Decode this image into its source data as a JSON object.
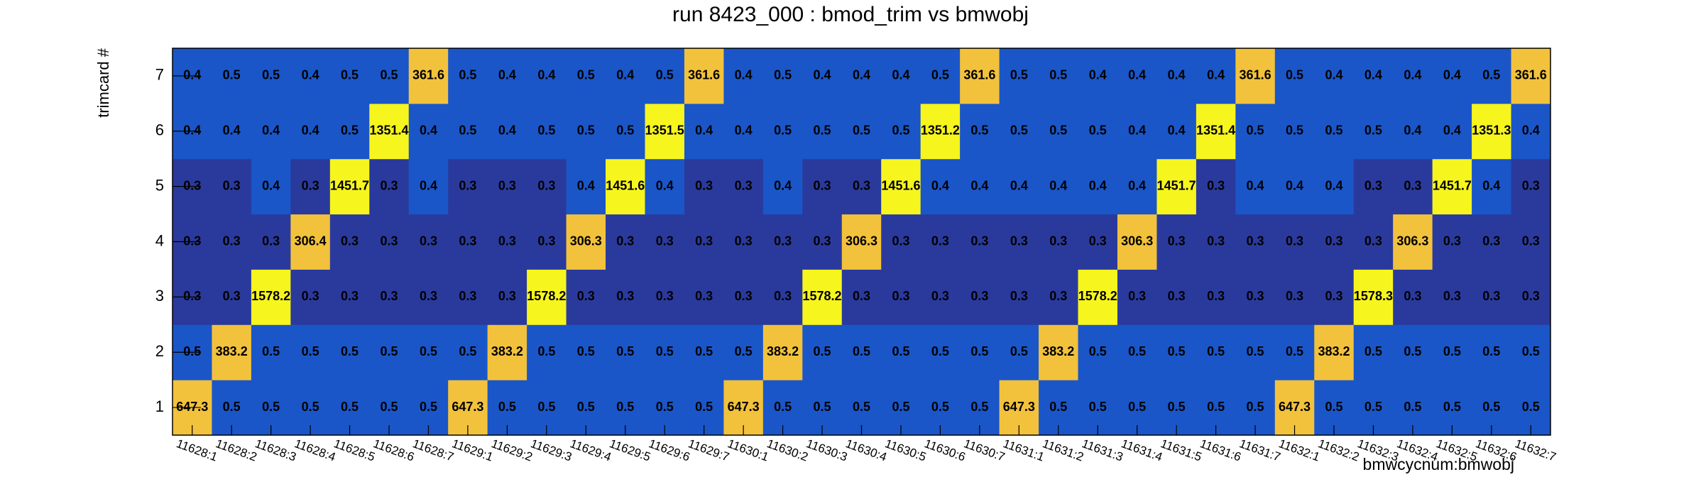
{
  "chart_data": {
    "type": "heatmap",
    "title": "run 8423_000 : bmod_trim vs bmwobj",
    "x_label": "bmwcycnum:bmwobj",
    "y_label": "trimcard #",
    "x_categories": [
      "11628:1",
      "11628:2",
      "11628:3",
      "11628:4",
      "11628:5",
      "11628:6",
      "11628:7",
      "11629:1",
      "11629:2",
      "11629:3",
      "11629:4",
      "11629:5",
      "11629:6",
      "11629:7",
      "11630:1",
      "11630:2",
      "11630:3",
      "11630:4",
      "11630:5",
      "11630:6",
      "11630:7",
      "11631:1",
      "11631:2",
      "11631:3",
      "11631:4",
      "11631:5",
      "11631:6",
      "11631:7",
      "11632:1",
      "11632:2",
      "11632:3",
      "11632:4",
      "11632:5",
      "11632:6",
      "11632:7"
    ],
    "y_categories": [
      "1",
      "2",
      "3",
      "4",
      "5",
      "6",
      "7"
    ],
    "z": [
      [
        647.3,
        0.5,
        0.5,
        0.5,
        0.5,
        0.5,
        0.5,
        647.3,
        0.5,
        0.5,
        0.5,
        0.5,
        0.5,
        0.5,
        647.3,
        0.5,
        0.5,
        0.5,
        0.5,
        0.5,
        0.5,
        647.3,
        0.5,
        0.5,
        0.5,
        0.5,
        0.5,
        0.5,
        647.3,
        0.5,
        0.5,
        0.5,
        0.5,
        0.5,
        0.5
      ],
      [
        0.5,
        383.2,
        0.5,
        0.5,
        0.5,
        0.5,
        0.5,
        0.5,
        383.2,
        0.5,
        0.5,
        0.5,
        0.5,
        0.5,
        0.5,
        383.2,
        0.5,
        0.5,
        0.5,
        0.5,
        0.5,
        0.5,
        383.2,
        0.5,
        0.5,
        0.5,
        0.5,
        0.5,
        0.5,
        383.2,
        0.5,
        0.5,
        0.5,
        0.5,
        0.5
      ],
      [
        0.3,
        0.3,
        1578.2,
        0.3,
        0.3,
        0.3,
        0.3,
        0.3,
        0.3,
        1578.2,
        0.3,
        0.3,
        0.3,
        0.3,
        0.3,
        0.3,
        1578.2,
        0.3,
        0.3,
        0.3,
        0.3,
        0.3,
        0.3,
        1578.2,
        0.3,
        0.3,
        0.3,
        0.3,
        0.3,
        0.3,
        1578.3,
        0.3,
        0.3,
        0.3,
        0.3
      ],
      [
        0.3,
        0.3,
        0.3,
        306.4,
        0.3,
        0.3,
        0.3,
        0.3,
        0.3,
        0.3,
        306.3,
        0.3,
        0.3,
        0.3,
        0.3,
        0.3,
        0.3,
        306.3,
        0.3,
        0.3,
        0.3,
        0.3,
        0.3,
        0.3,
        306.3,
        0.3,
        0.3,
        0.3,
        0.3,
        0.3,
        0.3,
        306.3,
        0.3,
        0.3,
        0.3
      ],
      [
        0.3,
        0.3,
        0.4,
        0.3,
        1451.7,
        0.3,
        0.4,
        0.3,
        0.3,
        0.3,
        0.4,
        1451.6,
        0.4,
        0.3,
        0.3,
        0.4,
        0.3,
        0.3,
        1451.6,
        0.4,
        0.4,
        0.4,
        0.4,
        0.4,
        0.4,
        1451.7,
        0.3,
        0.4,
        0.4,
        0.4,
        0.3,
        0.3,
        1451.7,
        0.4,
        0.3
      ],
      [
        0.4,
        0.4,
        0.4,
        0.4,
        0.5,
        1351.4,
        0.4,
        0.5,
        0.4,
        0.5,
        0.5,
        0.5,
        1351.5,
        0.4,
        0.4,
        0.5,
        0.5,
        0.5,
        0.5,
        1351.2,
        0.5,
        0.5,
        0.5,
        0.5,
        0.4,
        0.4,
        1351.4,
        0.5,
        0.5,
        0.5,
        0.5,
        0.4,
        0.4,
        1351.3,
        0.4
      ],
      [
        0.4,
        0.5,
        0.5,
        0.4,
        0.5,
        0.5,
        361.6,
        0.5,
        0.4,
        0.4,
        0.5,
        0.4,
        0.5,
        361.6,
        0.4,
        0.5,
        0.4,
        0.4,
        0.4,
        0.5,
        361.6,
        0.5,
        0.5,
        0.4,
        0.4,
        0.4,
        0.4,
        361.6,
        0.5,
        0.4,
        0.4,
        0.4,
        0.4,
        0.5,
        361.6
      ]
    ],
    "colors": {
      "low": "#2a3a9c",
      "mid": "#1a56c8",
      "high": "#f3c23c",
      "peak": "#f7f51e"
    }
  }
}
